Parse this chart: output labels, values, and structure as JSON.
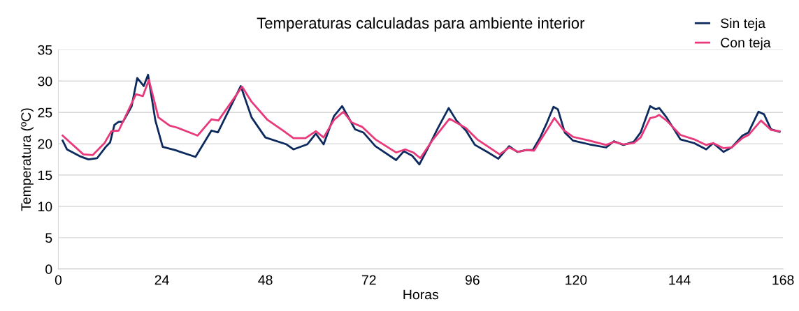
{
  "chart_data": {
    "type": "line",
    "title": "Temperaturas calculadas para ambiente interior",
    "xlabel": "Horas",
    "ylabel": "Temperatura (ºC)",
    "xlim": [
      0,
      168
    ],
    "xticks": [
      0,
      24,
      48,
      72,
      96,
      120,
      144,
      168
    ],
    "ylim": [
      0,
      35
    ],
    "yticks": [
      0,
      5,
      10,
      15,
      20,
      25,
      30,
      35
    ],
    "grid": "y",
    "legend": "top right",
    "marker": "none",
    "line_style": "solid",
    "series": [
      {
        "name": "Sin teja",
        "color": "#0d2a5e",
        "x": [
          1,
          2,
          5,
          7,
          9,
          11,
          12,
          13,
          14,
          15,
          17,
          18.3,
          19.8,
          20.8,
          22.5,
          24.2,
          27,
          31.8,
          35.5,
          37,
          42.3,
          44.8,
          48,
          52.9,
          54.5,
          57.7,
          59.7,
          61.5,
          63.9,
          65.8,
          68.8,
          70.7,
          73.5,
          78.3,
          80.1,
          82,
          83.7,
          85.6,
          88,
          90.5,
          92.3,
          94.5,
          96.6,
          99.4,
          102,
          104.5,
          106.4,
          108.5,
          110,
          111.7,
          113.3,
          114.8,
          115.8,
          117.4,
          119.3,
          123.1,
          127,
          128.8,
          131,
          133.4,
          135,
          137.2,
          138.5,
          139.3,
          141,
          144.2,
          147.4,
          150.2,
          151.8,
          154.2,
          156.1,
          158.6,
          160,
          162.3,
          163.6,
          165.2,
          167.2
        ],
        "values": [
          20.5,
          19.1,
          18,
          17.5,
          17.7,
          19.5,
          20.2,
          23,
          23.5,
          23.5,
          26,
          30.5,
          29.2,
          31,
          23.7,
          19.5,
          19,
          17.9,
          22.1,
          21.8,
          29.2,
          24.2,
          21,
          19.9,
          19.1,
          19.9,
          21.6,
          19.9,
          24.4,
          26,
          22.3,
          21.8,
          19.6,
          17.4,
          18.8,
          18.1,
          16.7,
          19.2,
          22.5,
          25.7,
          23.7,
          22.1,
          19.8,
          18.7,
          17.6,
          19.6,
          18.7,
          19,
          19,
          21,
          23.4,
          25.9,
          25.5,
          21.8,
          20.5,
          19.9,
          19.4,
          20.4,
          19.8,
          20.3,
          21.8,
          26,
          25.5,
          25.7,
          24.2,
          20.7,
          20.1,
          19.1,
          20.1,
          18.7,
          19.4,
          21.3,
          21.8,
          25.1,
          24.7,
          22.3,
          21.9
        ]
      },
      {
        "name": "Con teja",
        "color": "#e8397a",
        "x": [
          1,
          5.8,
          8,
          10.7,
          12.3,
          14,
          18,
          19.6,
          21,
          23.2,
          25.8,
          27.4,
          32.3,
          35.5,
          37.1,
          42.6,
          44.8,
          48.5,
          52.3,
          54.5,
          57.3,
          59.7,
          61.5,
          63.9,
          66.1,
          68,
          70.4,
          73.5,
          78.3,
          80.4,
          82.3,
          83.9,
          86.9,
          90.7,
          94.5,
          97.1,
          102.3,
          104.5,
          106.6,
          108.5,
          110.3,
          111.7,
          113.3,
          115,
          117.1,
          119.3,
          123.1,
          127,
          128.8,
          131,
          133.4,
          135,
          137.2,
          138.5,
          139.3,
          141,
          144.2,
          147.4,
          150.2,
          151.8,
          154.2,
          156.1,
          158.6,
          160,
          162.9,
          165.2,
          167.2
        ],
        "values": [
          21.3,
          18.3,
          18.2,
          20.1,
          22,
          22.1,
          27.9,
          27.6,
          30.2,
          24.2,
          22.9,
          22.6,
          21.3,
          23.9,
          23.7,
          29.1,
          26.7,
          23.8,
          22,
          20.9,
          20.9,
          22,
          21,
          23.8,
          25.1,
          23.4,
          22.7,
          20.7,
          18.6,
          19.1,
          18.6,
          17.7,
          20.7,
          24,
          22.5,
          20.7,
          18.3,
          19.4,
          18.7,
          19,
          18.9,
          20.5,
          22.2,
          24.1,
          22.2,
          21.1,
          20.5,
          19.8,
          20.3,
          19.9,
          20.1,
          21,
          24.1,
          24.3,
          24.6,
          23.7,
          21.4,
          20.7,
          19.8,
          20.1,
          19.3,
          19.4,
          20.9,
          21.4,
          23.7,
          22.2,
          22
        ]
      }
    ]
  }
}
